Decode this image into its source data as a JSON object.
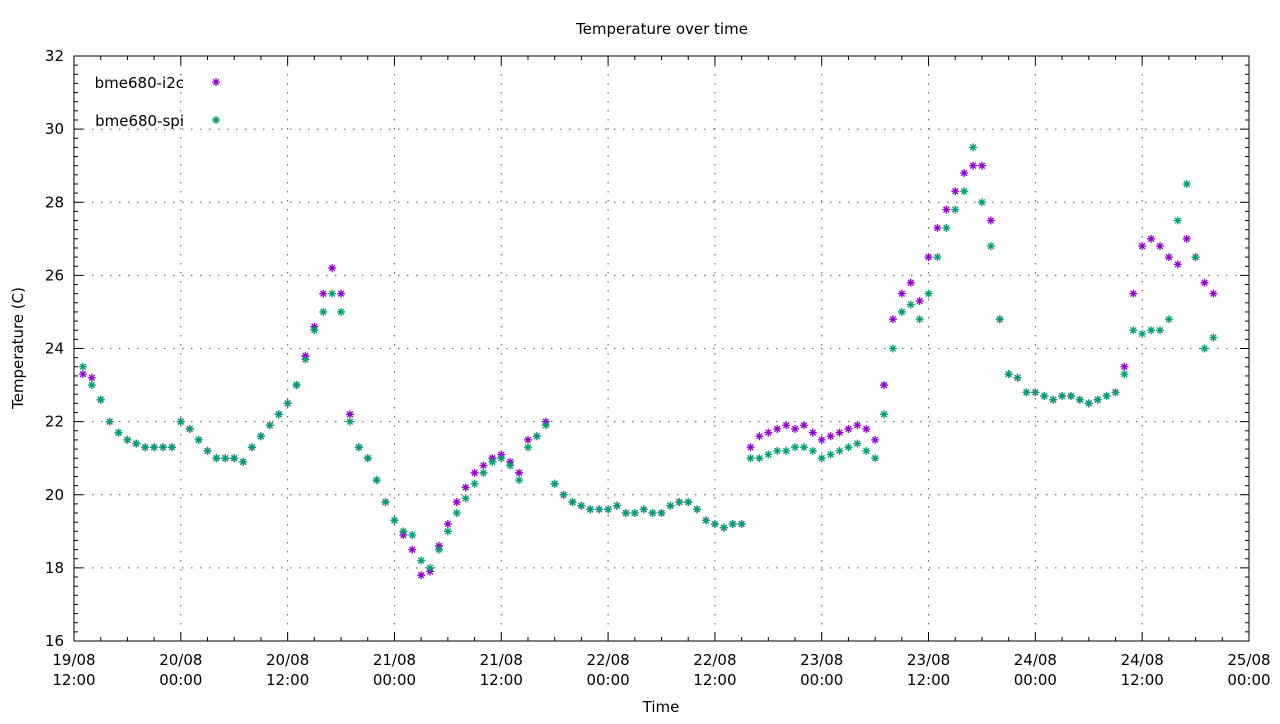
{
  "chart_data": {
    "type": "scatter",
    "title": "Temperature over time",
    "xlabel": "Time",
    "ylabel": "Temperature (C)",
    "ylim": [
      16,
      32
    ],
    "yticks": [
      16,
      18,
      20,
      22,
      24,
      26,
      28,
      30,
      32
    ],
    "xlim": [
      "19/08 12:00",
      "25/08 00:00"
    ],
    "xticks": [
      [
        "19/08",
        "12:00"
      ],
      [
        "20/08",
        "00:00"
      ],
      [
        "20/08",
        "12:00"
      ],
      [
        "21/08",
        "00:00"
      ],
      [
        "21/08",
        "12:00"
      ],
      [
        "22/08",
        "00:00"
      ],
      [
        "22/08",
        "12:00"
      ],
      [
        "23/08",
        "00:00"
      ],
      [
        "23/08",
        "12:00"
      ],
      [
        "24/08",
        "00:00"
      ],
      [
        "24/08",
        "12:00"
      ],
      [
        "25/08",
        "00:00"
      ]
    ],
    "grid": true,
    "legend_position": "top-left",
    "marker": "asterisk",
    "times": [
      "19/08 13:00",
      "19/08 14:00",
      "19/08 15:00",
      "19/08 16:00",
      "19/08 17:00",
      "19/08 18:00",
      "19/08 19:00",
      "19/08 20:00",
      "19/08 21:00",
      "19/08 22:00",
      "19/08 23:00",
      "20/08 00:00",
      "20/08 01:00",
      "20/08 02:00",
      "20/08 03:00",
      "20/08 04:00",
      "20/08 05:00",
      "20/08 06:00",
      "20/08 07:00",
      "20/08 08:00",
      "20/08 09:00",
      "20/08 10:00",
      "20/08 11:00",
      "20/08 12:00",
      "20/08 13:00",
      "20/08 14:00",
      "20/08 15:00",
      "20/08 16:00",
      "20/08 17:00",
      "20/08 18:00",
      "20/08 19:00",
      "20/08 20:00",
      "20/08 21:00",
      "20/08 22:00",
      "20/08 23:00",
      "21/08 00:00",
      "21/08 01:00",
      "21/08 02:00",
      "21/08 03:00",
      "21/08 04:00",
      "21/08 05:00",
      "21/08 06:00",
      "21/08 07:00",
      "21/08 08:00",
      "21/08 09:00",
      "21/08 10:00",
      "21/08 11:00",
      "21/08 12:00",
      "21/08 13:00",
      "21/08 14:00",
      "21/08 15:00",
      "21/08 16:00",
      "21/08 17:00",
      "21/08 18:00",
      "21/08 19:00",
      "21/08 20:00",
      "21/08 21:00",
      "21/08 22:00",
      "21/08 23:00",
      "22/08 00:00",
      "22/08 01:00",
      "22/08 02:00",
      "22/08 03:00",
      "22/08 04:00",
      "22/08 05:00",
      "22/08 06:00",
      "22/08 07:00",
      "22/08 08:00",
      "22/08 09:00",
      "22/08 10:00",
      "22/08 11:00",
      "22/08 12:00",
      "22/08 13:00",
      "22/08 14:00",
      "22/08 15:00",
      "22/08 16:00",
      "22/08 17:00",
      "22/08 18:00",
      "22/08 19:00",
      "22/08 20:00",
      "22/08 21:00",
      "22/08 22:00",
      "22/08 23:00",
      "23/08 00:00",
      "23/08 01:00",
      "23/08 02:00",
      "23/08 03:00",
      "23/08 04:00",
      "23/08 05:00",
      "23/08 06:00",
      "23/08 07:00",
      "23/08 08:00",
      "23/08 09:00",
      "23/08 10:00",
      "23/08 11:00",
      "23/08 12:00",
      "23/08 13:00",
      "23/08 14:00",
      "23/08 15:00",
      "23/08 16:00",
      "23/08 17:00",
      "23/08 18:00",
      "23/08 19:00",
      "23/08 20:00",
      "23/08 21:00",
      "23/08 22:00",
      "23/08 23:00",
      "24/08 00:00",
      "24/08 01:00",
      "24/08 02:00",
      "24/08 03:00",
      "24/08 04:00",
      "24/08 05:00",
      "24/08 06:00",
      "24/08 07:00",
      "24/08 08:00",
      "24/08 09:00",
      "24/08 10:00",
      "24/08 11:00",
      "24/08 12:00",
      "24/08 13:00",
      "24/08 14:00",
      "24/08 15:00",
      "24/08 16:00",
      "24/08 17:00",
      "24/08 18:00",
      "24/08 19:00",
      "24/08 20:00"
    ],
    "series": [
      {
        "name": "bme680-i2c",
        "color": "#9400d3",
        "values": [
          23.3,
          23.2,
          22.6,
          22.0,
          21.7,
          21.5,
          21.4,
          21.3,
          21.3,
          21.3,
          21.3,
          22.0,
          21.8,
          21.5,
          21.2,
          21.0,
          21.0,
          21.0,
          20.9,
          21.3,
          21.6,
          21.9,
          22.2,
          22.5,
          23.0,
          23.8,
          24.6,
          25.5,
          26.2,
          25.5,
          22.2,
          21.3,
          21.0,
          20.4,
          19.8,
          19.3,
          18.9,
          18.5,
          17.8,
          17.9,
          18.6,
          19.2,
          19.8,
          20.2,
          20.6,
          20.8,
          21.0,
          21.1,
          20.9,
          20.6,
          21.5,
          21.6,
          22.0,
          20.3,
          20.0,
          19.8,
          19.7,
          19.6,
          19.6,
          19.6,
          19.7,
          19.5,
          19.5,
          19.6,
          19.5,
          19.5,
          19.7,
          19.8,
          19.8,
          19.6,
          19.3,
          19.2,
          19.1,
          19.2,
          19.2,
          21.3,
          21.6,
          21.7,
          21.8,
          21.9,
          21.8,
          21.9,
          21.7,
          21.5,
          21.6,
          21.7,
          21.8,
          21.9,
          21.8,
          21.5,
          23.0,
          24.8,
          25.5,
          25.8,
          25.3,
          26.5,
          27.3,
          27.8,
          28.3,
          28.8,
          29.0,
          29.0,
          27.5,
          24.8,
          23.3,
          23.2,
          22.8,
          22.8,
          22.7,
          22.6,
          22.7,
          22.7,
          22.6,
          22.5,
          22.6,
          22.7,
          22.8,
          23.5,
          25.5,
          26.8,
          27.0,
          26.8,
          26.5,
          26.3,
          27.0,
          26.5,
          25.8,
          25.5
        ]
      },
      {
        "name": "bme680-spi",
        "color": "#009e73",
        "values": [
          23.5,
          23.0,
          22.6,
          22.0,
          21.7,
          21.5,
          21.4,
          21.3,
          21.3,
          21.3,
          21.3,
          22.0,
          21.8,
          21.5,
          21.2,
          21.0,
          21.0,
          21.0,
          20.9,
          21.3,
          21.6,
          21.9,
          22.2,
          22.5,
          23.0,
          23.7,
          24.5,
          25.0,
          25.5,
          25.0,
          22.0,
          21.3,
          21.0,
          20.4,
          19.8,
          19.3,
          19.0,
          18.9,
          18.2,
          18.0,
          18.5,
          19.0,
          19.5,
          19.9,
          20.3,
          20.6,
          20.9,
          21.0,
          20.8,
          20.4,
          21.3,
          21.6,
          21.9,
          20.3,
          20.0,
          19.8,
          19.7,
          19.6,
          19.6,
          19.6,
          19.7,
          19.5,
          19.5,
          19.6,
          19.5,
          19.5,
          19.7,
          19.8,
          19.8,
          19.6,
          19.3,
          19.2,
          19.1,
          19.2,
          19.2,
          21.0,
          21.0,
          21.1,
          21.2,
          21.2,
          21.3,
          21.3,
          21.2,
          21.0,
          21.1,
          21.2,
          21.3,
          21.4,
          21.2,
          21.0,
          22.2,
          24.0,
          25.0,
          25.2,
          24.8,
          25.5,
          26.5,
          27.3,
          27.8,
          28.3,
          29.5,
          28.0,
          26.8,
          24.8,
          23.3,
          23.2,
          22.8,
          22.8,
          22.7,
          22.6,
          22.7,
          22.7,
          22.6,
          22.5,
          22.6,
          22.7,
          22.8,
          23.3,
          24.5,
          24.4,
          24.5,
          24.5,
          24.8,
          27.5,
          28.5,
          26.5,
          24.0,
          24.3
        ]
      }
    ]
  }
}
